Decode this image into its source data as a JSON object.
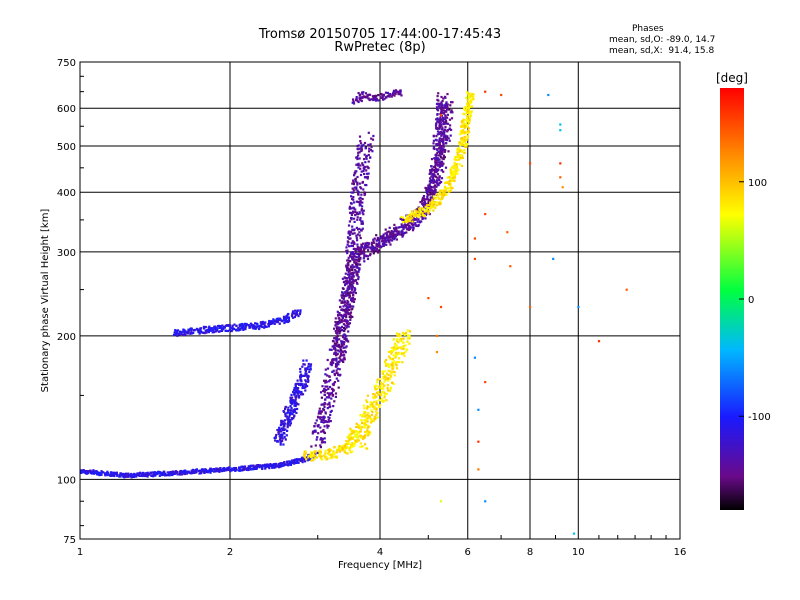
{
  "chart_data": {
    "type": "scatter",
    "title": "Tromsø 20150705 17:44:00-17:45:43",
    "subtitle": "RwPretec (8p)",
    "xlabel": "Frequency [MHz]",
    "ylabel": "Stationary phase Virtual Height [km]",
    "x_scale": "log",
    "y_scale": "log",
    "xlim": [
      1,
      16
    ],
    "ylim": [
      75,
      750
    ],
    "grid": true,
    "x_ticks": [
      {
        "value": 1,
        "label": "1"
      },
      {
        "value": 2,
        "label": "2"
      },
      {
        "value": 4,
        "label": "4"
      },
      {
        "value": 6,
        "label": "6"
      },
      {
        "value": 8,
        "label": "8"
      },
      {
        "value": 10,
        "label": "10"
      },
      {
        "value": 16,
        "label": "16"
      }
    ],
    "y_ticks": [
      {
        "value": 75,
        "label": "75"
      },
      {
        "value": 100,
        "label": "100"
      },
      {
        "value": 200,
        "label": "200"
      },
      {
        "value": 300,
        "label": "300"
      },
      {
        "value": 400,
        "label": "400"
      },
      {
        "value": 500,
        "label": "500"
      },
      {
        "value": 600,
        "label": "600"
      },
      {
        "value": 750,
        "label": "750"
      }
    ],
    "colorbar": {
      "label": "[deg]",
      "range": [
        -180,
        180
      ],
      "ticks": [
        {
          "value": 100,
          "label": "100"
        },
        {
          "value": 0,
          "label": "0"
        },
        {
          "value": -100,
          "label": "-100"
        }
      ]
    },
    "stats": {
      "heading": "Phases",
      "o_line": "mean, sd,O: -89.0, 14.7",
      "x_line": "mean, sd,X:  91.4, 15.8"
    },
    "traces": [
      {
        "phase": -110,
        "spread": 0.02,
        "count": 5,
        "points": [
          [
            1.0,
            104
          ],
          [
            1.25,
            102
          ],
          [
            1.5,
            103
          ],
          [
            2.0,
            105
          ],
          [
            2.5,
            107
          ],
          [
            2.8,
            110
          ],
          [
            3.0,
            113
          ]
        ]
      },
      {
        "phase": -110,
        "spread": 0.03,
        "count": 5,
        "points": [
          [
            1.55,
            203
          ],
          [
            1.9,
            207
          ],
          [
            2.3,
            210
          ],
          [
            2.6,
            217
          ],
          [
            2.75,
            225
          ]
        ]
      },
      {
        "phase": -115,
        "spread": 0.05,
        "count": 6,
        "points": [
          [
            2.5,
            120
          ],
          [
            2.65,
            140
          ],
          [
            2.8,
            160
          ],
          [
            2.85,
            175
          ]
        ]
      },
      {
        "phase": -140,
        "spread": 0.07,
        "count": 4,
        "points": [
          [
            3.0,
            120
          ],
          [
            3.15,
            150
          ],
          [
            3.3,
            190
          ],
          [
            3.45,
            240
          ],
          [
            3.55,
            300
          ],
          [
            3.6,
            380
          ],
          [
            3.7,
            470
          ],
          [
            3.75,
            520
          ]
        ]
      },
      {
        "phase": -145,
        "spread": 0.06,
        "count": 4,
        "points": [
          [
            3.3,
            180
          ],
          [
            3.45,
            240
          ],
          [
            3.55,
            290
          ],
          [
            3.8,
            305
          ],
          [
            4.3,
            330
          ],
          [
            4.8,
            360
          ],
          [
            5.1,
            410
          ],
          [
            5.3,
            470
          ],
          [
            5.4,
            540
          ],
          [
            5.45,
            620
          ]
        ]
      },
      {
        "phase": -140,
        "spread": 0.05,
        "count": 4,
        "points": [
          [
            3.6,
            300
          ],
          [
            4.2,
            320
          ],
          [
            4.8,
            350
          ],
          [
            5.1,
            400
          ],
          [
            5.2,
            470
          ],
          [
            5.3,
            560
          ],
          [
            5.35,
            640
          ]
        ]
      },
      {
        "phase": -140,
        "spread": 0.03,
        "count": 4,
        "points": [
          [
            3.55,
            620
          ],
          [
            3.7,
            640
          ],
          [
            3.9,
            630
          ],
          [
            4.2,
            640
          ],
          [
            4.45,
            650
          ]
        ]
      },
      {
        "phase": 80,
        "spread": 0.05,
        "count": 5,
        "points": [
          [
            2.85,
            112
          ],
          [
            3.2,
            113
          ],
          [
            3.5,
            118
          ],
          [
            3.6,
            130
          ]
        ]
      },
      {
        "phase": 80,
        "spread": 0.07,
        "count": 5,
        "points": [
          [
            3.65,
            120
          ],
          [
            3.85,
            140
          ],
          [
            4.1,
            160
          ],
          [
            4.3,
            180
          ],
          [
            4.5,
            205
          ]
        ]
      },
      {
        "phase": 80,
        "spread": 0.04,
        "count": 5,
        "points": [
          [
            4.5,
            350
          ],
          [
            5.0,
            370
          ],
          [
            5.4,
            400
          ],
          [
            5.7,
            450
          ],
          [
            5.9,
            520
          ],
          [
            6.0,
            600
          ],
          [
            6.1,
            650
          ]
        ]
      }
    ],
    "scatter": [
      [
        6.5,
        650,
        160
      ],
      [
        7.0,
        640,
        150
      ],
      [
        6.2,
        320,
        150
      ],
      [
        6.2,
        290,
        150
      ],
      [
        5.0,
        240,
        150
      ],
      [
        5.3,
        230,
        150
      ],
      [
        6.5,
        160,
        150
      ],
      [
        6.3,
        120,
        160
      ],
      [
        6.5,
        360,
        150
      ],
      [
        7.3,
        280,
        140
      ],
      [
        7.2,
        330,
        140
      ],
      [
        8.7,
        640,
        -60
      ],
      [
        9.2,
        540,
        -40
      ],
      [
        9.2,
        555,
        -40
      ],
      [
        9.2,
        460,
        160
      ],
      [
        9.2,
        430,
        140
      ],
      [
        9.3,
        410,
        120
      ],
      [
        8.0,
        460,
        150
      ],
      [
        8.9,
        290,
        -60
      ],
      [
        10.0,
        230,
        -60
      ],
      [
        11.0,
        195,
        160
      ],
      [
        12.5,
        250,
        140
      ],
      [
        8.0,
        230,
        140
      ],
      [
        9.8,
        77,
        -40
      ],
      [
        6.5,
        90,
        -60
      ],
      [
        5.3,
        90,
        60
      ],
      [
        6.3,
        105,
        130
      ],
      [
        6.3,
        140,
        -60
      ],
      [
        6.2,
        180,
        -60
      ],
      [
        5.2,
        185,
        120
      ],
      [
        5.2,
        200,
        130
      ],
      [
        5.3,
        580,
        150
      ]
    ]
  }
}
